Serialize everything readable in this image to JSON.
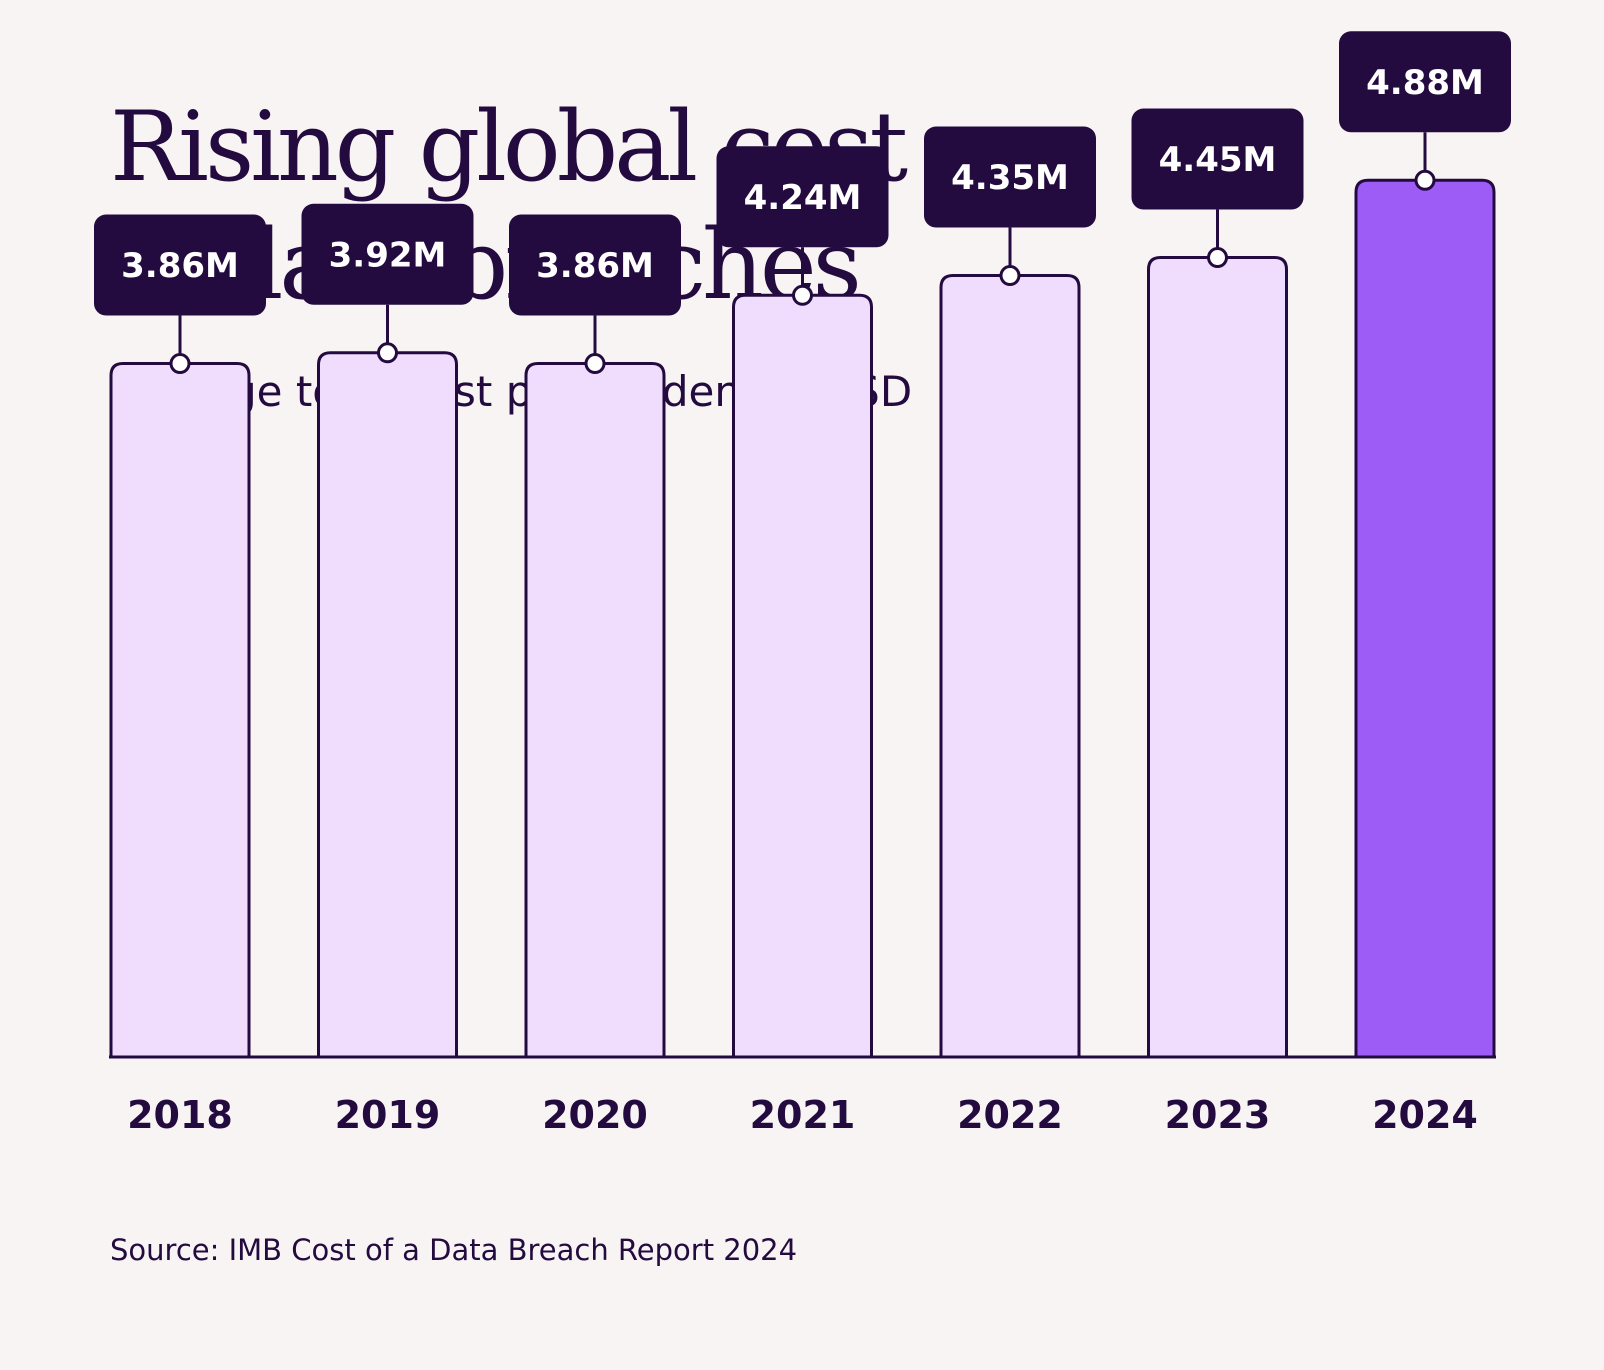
{
  "title_lines": [
    "Rising global cost",
    "of data breaches"
  ],
  "subtitle": "Average total cost per incident in USD",
  "source": "Source: IMB Cost of a Data Breach Report 2024",
  "colors": {
    "background": "#f9f4f4",
    "ink": "#230b3f",
    "bar_fill": "#f0ddfe",
    "bar_highlight": "#9d5cf6",
    "label_text": "#ffffff"
  },
  "chart_data": {
    "type": "bar",
    "title": "Rising global cost of data breaches",
    "subtitle": "Average total cost per incident in USD",
    "xlabel": "",
    "ylabel": "",
    "grid": false,
    "ylim": [
      0,
      5.7
    ],
    "categories": [
      "2018",
      "2019",
      "2020",
      "2021",
      "2022",
      "2023",
      "2024"
    ],
    "values": [
      3.86,
      3.92,
      3.86,
      4.24,
      4.35,
      4.45,
      4.88
    ],
    "value_labels": [
      "3.86M",
      "3.92M",
      "3.86M",
      "4.24M",
      "4.35M",
      "4.45M",
      "4.88M"
    ],
    "highlight_category": "2024"
  }
}
